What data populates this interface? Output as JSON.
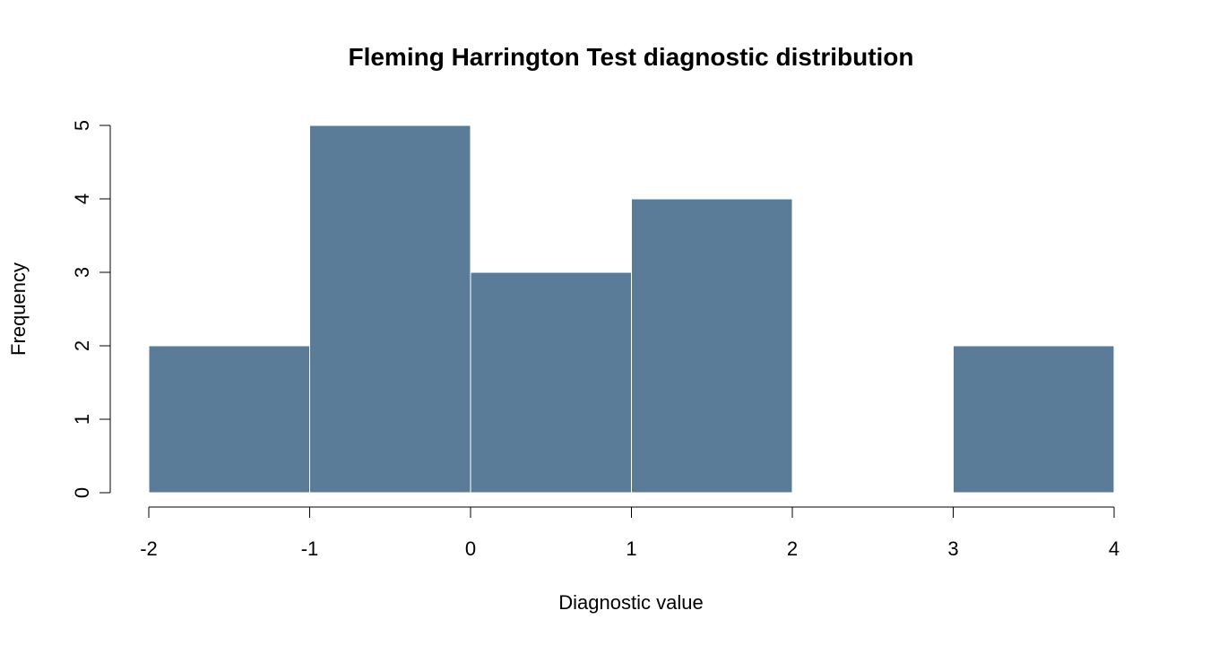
{
  "chart_data": {
    "type": "bar",
    "title": "Fleming Harrington Test diagnostic distribution",
    "xlabel": "Diagnostic value",
    "ylabel": "Frequency",
    "bins": [
      {
        "start": -2,
        "end": -1,
        "count": 2
      },
      {
        "start": -1,
        "end": 0,
        "count": 5
      },
      {
        "start": 0,
        "end": 1,
        "count": 3
      },
      {
        "start": 1,
        "end": 2,
        "count": 4
      },
      {
        "start": 2,
        "end": 3,
        "count": 0
      },
      {
        "start": 3,
        "end": 4,
        "count": 2
      }
    ],
    "xticks": [
      "-2",
      "-1",
      "0",
      "1",
      "2",
      "3",
      "4"
    ],
    "yticks": [
      "0",
      "1",
      "2",
      "3",
      "4",
      "5"
    ],
    "xlim": [
      -2,
      4
    ],
    "ylim": [
      0,
      5
    ],
    "bar_color": "#5b7c98",
    "bar_edge_color": "#ffffff",
    "grid": false
  }
}
